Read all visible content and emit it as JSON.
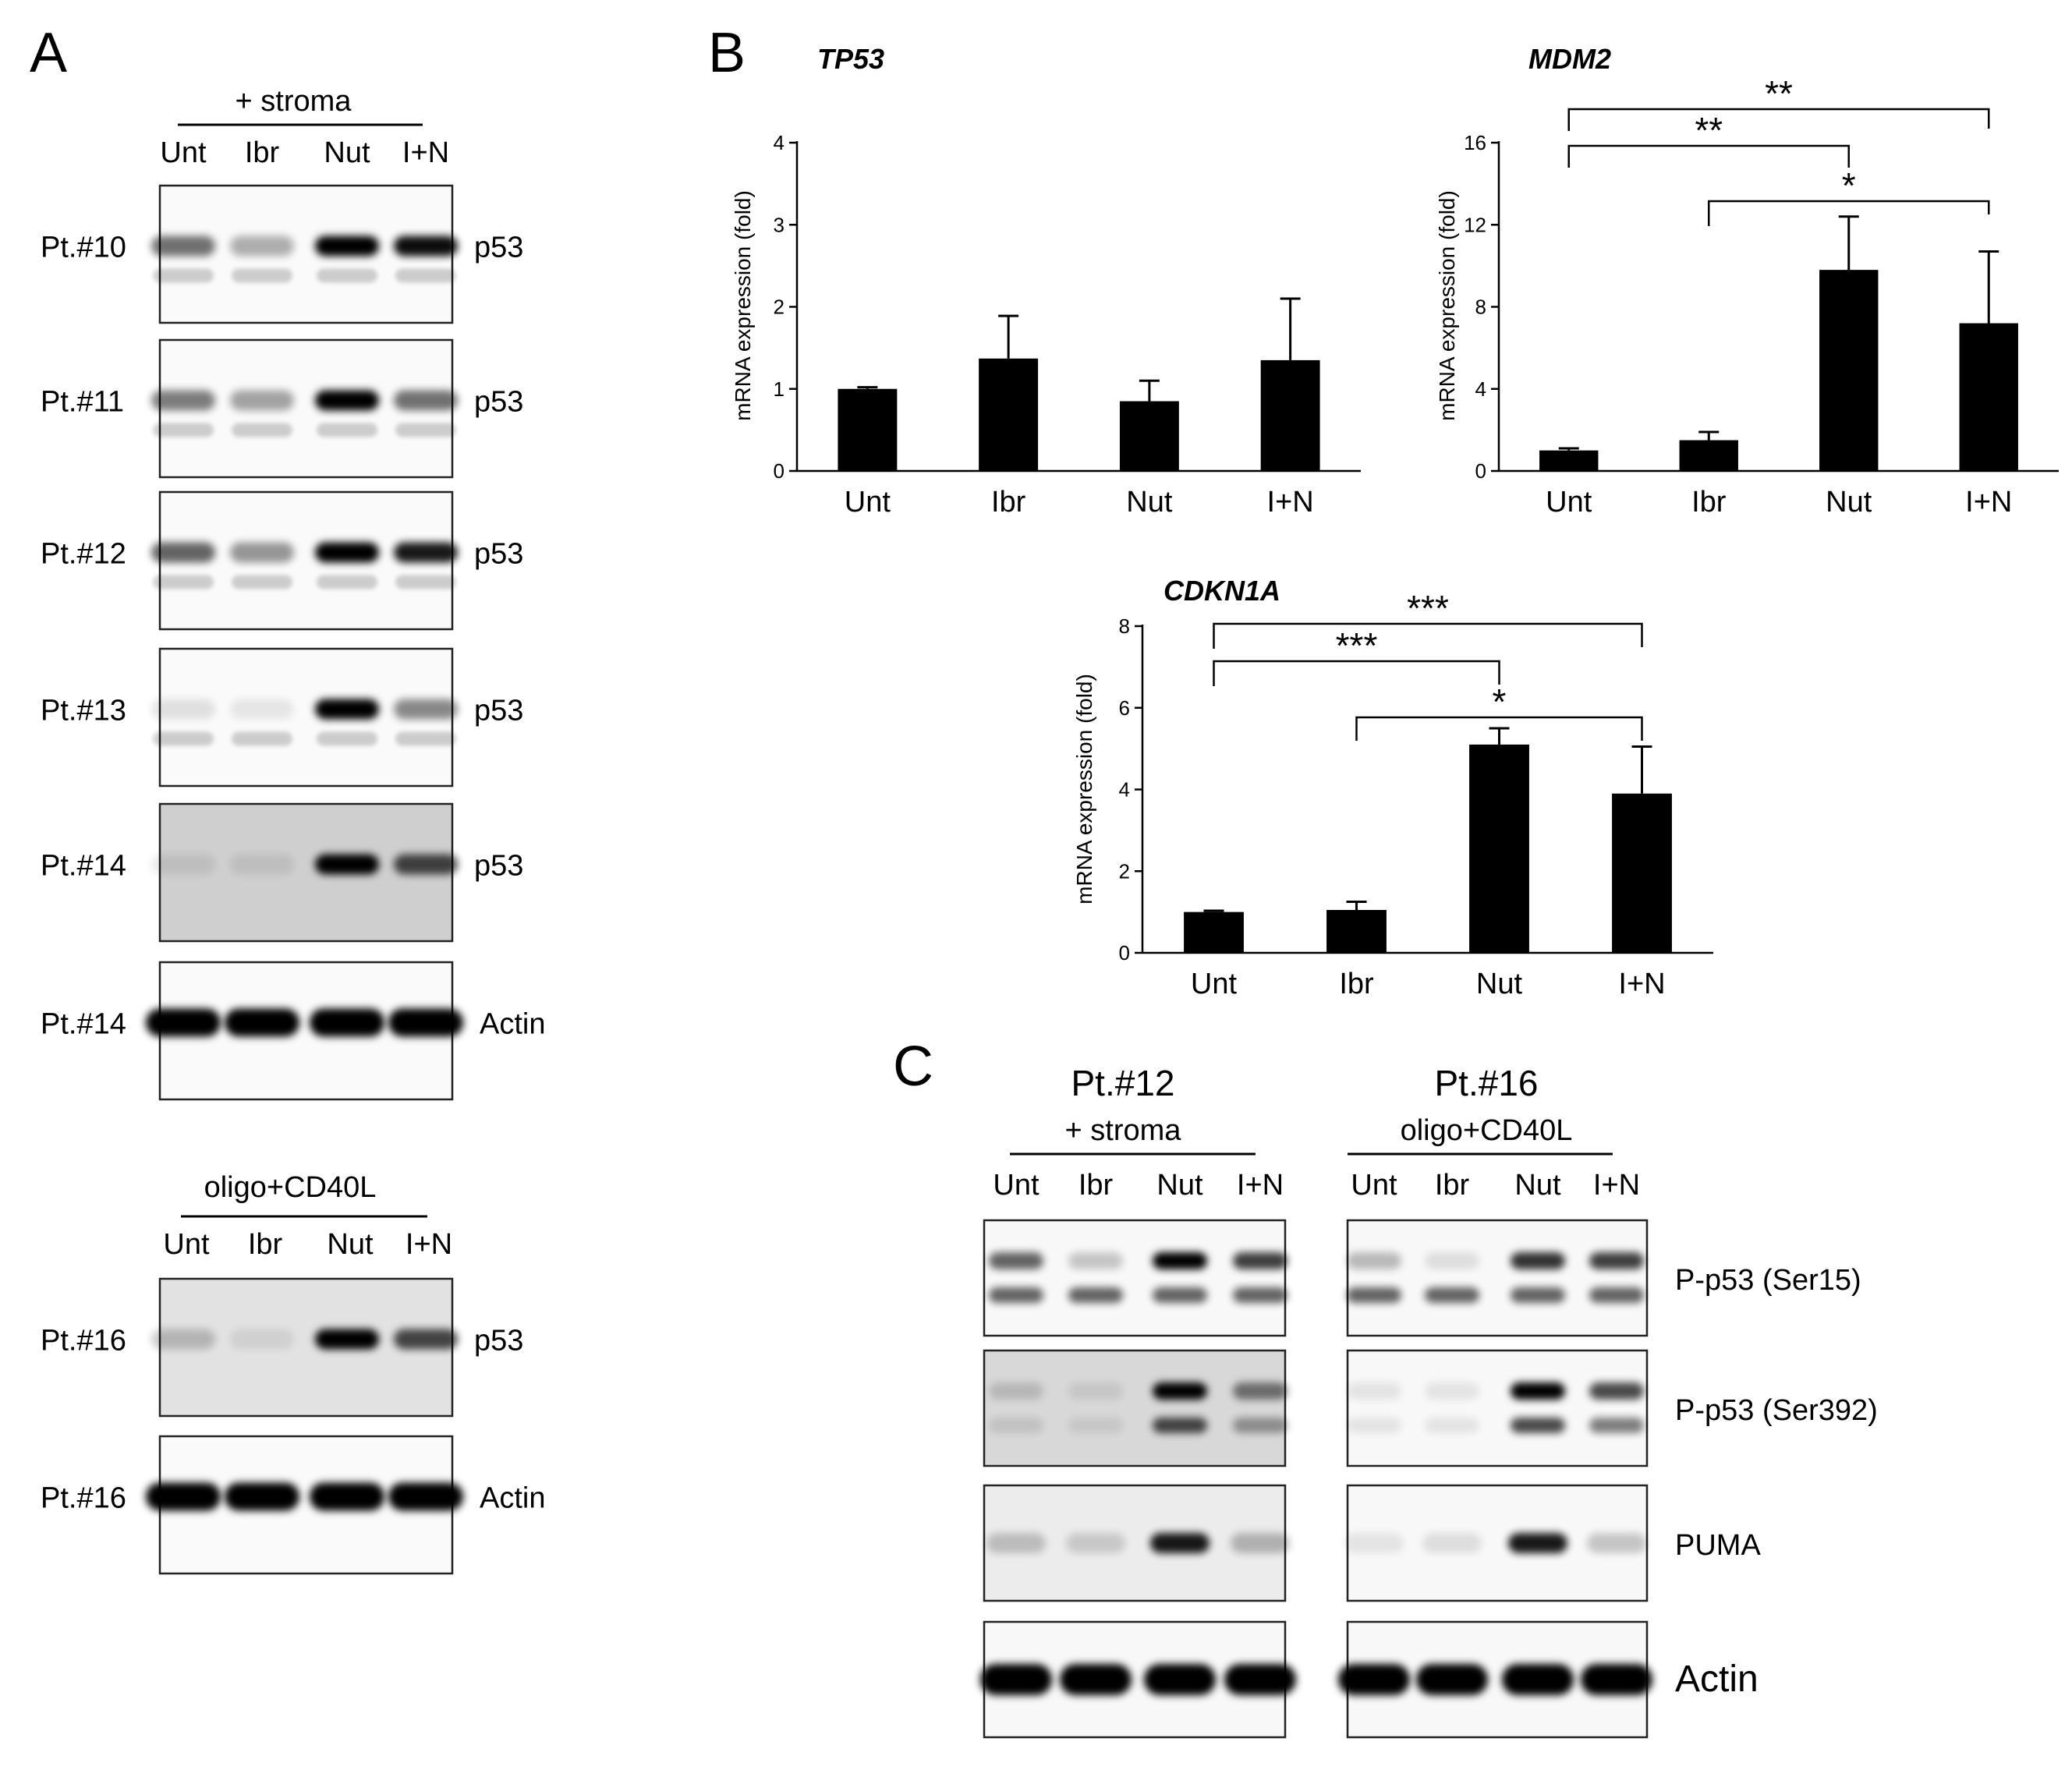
{
  "panels": {
    "A": "A",
    "B": "B",
    "C": "C"
  },
  "panel_a": {
    "stroma_header": "+ stroma",
    "cd40l_header": "oligo+CD40L",
    "lanes": [
      "Unt",
      "Ibr",
      "Nut",
      "I+N"
    ],
    "blots": [
      {
        "patient": "Pt.#10",
        "protein": "p53",
        "band_intensity": [
          0.55,
          0.3,
          1.0,
          0.95
        ]
      },
      {
        "patient": "Pt.#11",
        "protein": "p53",
        "band_intensity": [
          0.5,
          0.35,
          1.0,
          0.55
        ]
      },
      {
        "patient": "Pt.#12",
        "protein": "p53",
        "band_intensity": [
          0.6,
          0.4,
          1.0,
          0.9
        ]
      },
      {
        "patient": "Pt.#13",
        "protein": "p53",
        "band_intensity": [
          0.1,
          0.05,
          1.0,
          0.45
        ]
      },
      {
        "patient": "Pt.#14",
        "protein": "p53",
        "band_intensity": [
          0.0,
          0.0,
          1.0,
          0.7
        ]
      },
      {
        "patient": "Pt.#14",
        "protein": "Actin",
        "band_intensity": [
          1.0,
          1.0,
          1.0,
          1.0
        ]
      },
      {
        "patient": "Pt.#16",
        "protein": "p53",
        "band_intensity": [
          0.2,
          0.0,
          1.0,
          0.7
        ]
      },
      {
        "patient": "Pt.#16",
        "protein": "Actin",
        "band_intensity": [
          1.0,
          1.0,
          1.0,
          1.0
        ]
      }
    ]
  },
  "panel_c": {
    "left_patient": "Pt.#12",
    "left_condition": "+ stroma",
    "right_patient": "Pt.#16",
    "right_condition": "oligo+CD40L",
    "lanes": [
      "Unt",
      "Ibr",
      "Nut",
      "I+N"
    ],
    "rows": [
      "P-p53 (Ser15)",
      "P-p53 (Ser392)",
      "PUMA",
      "Actin"
    ]
  },
  "chart_data": [
    {
      "type": "bar",
      "title": "TP53",
      "ylabel": "mRNA expression (fold)",
      "categories": [
        "Unt",
        "Ibr",
        "Nut",
        "I+N"
      ],
      "values": [
        1.0,
        1.37,
        0.85,
        1.35
      ],
      "errors": [
        0.02,
        0.52,
        0.25,
        0.75
      ],
      "ylim": [
        0,
        4
      ],
      "yticks": [
        "0",
        "1",
        "2",
        "3",
        "4"
      ],
      "significance": []
    },
    {
      "type": "bar",
      "title": "MDM2",
      "ylabel": "mRNA expression (fold)",
      "categories": [
        "Unt",
        "Ibr",
        "Nut",
        "I+N"
      ],
      "values": [
        1.0,
        1.5,
        9.8,
        7.2
      ],
      "errors": [
        0.1,
        0.4,
        2.6,
        3.5
      ],
      "ylim": [
        0,
        16
      ],
      "yticks": [
        "0",
        "4",
        "8",
        "12",
        "16"
      ],
      "significance": [
        {
          "from": "Unt",
          "to": "Nut",
          "label": "**"
        },
        {
          "from": "Unt",
          "to": "I+N",
          "label": "**"
        },
        {
          "from": "Ibr",
          "to": "I+N",
          "label": "*"
        }
      ]
    },
    {
      "type": "bar",
      "title": "CDKN1A",
      "ylabel": "mRNA expression (fold)",
      "categories": [
        "Unt",
        "Ibr",
        "Nut",
        "I+N"
      ],
      "values": [
        1.0,
        1.05,
        5.1,
        3.9
      ],
      "errors": [
        0.03,
        0.2,
        0.4,
        1.15
      ],
      "ylim": [
        0,
        8
      ],
      "yticks": [
        "0",
        "2",
        "4",
        "6",
        "8"
      ],
      "significance": [
        {
          "from": "Unt",
          "to": "Nut",
          "label": "***"
        },
        {
          "from": "Unt",
          "to": "I+N",
          "label": "***"
        },
        {
          "from": "Ibr",
          "to": "I+N",
          "label": "*"
        }
      ]
    }
  ]
}
